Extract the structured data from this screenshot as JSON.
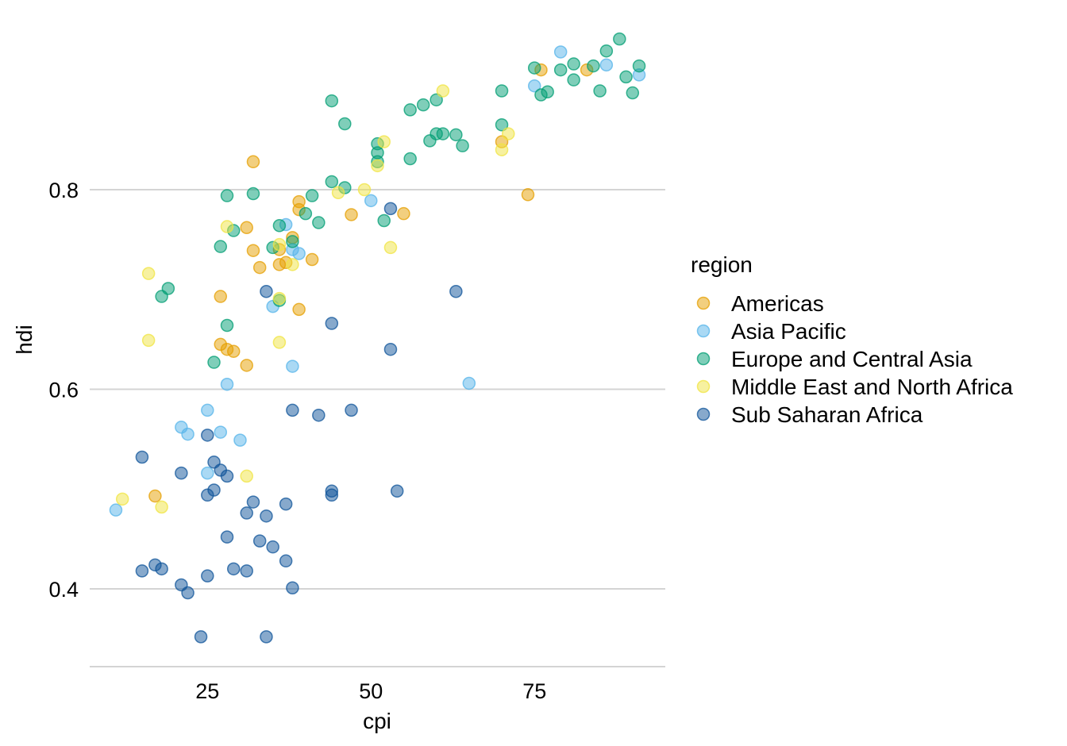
{
  "chart_data": {
    "type": "scatter",
    "title": "",
    "xlabel": "cpi",
    "ylabel": "hdi",
    "xlim": [
      7,
      95
    ],
    "ylim": [
      0.32,
      0.96
    ],
    "xticks": [
      25,
      50,
      75
    ],
    "yticks": [
      0.4,
      0.6,
      0.8
    ],
    "ytick_labels": [
      "0.4",
      "0.6",
      "0.8"
    ],
    "xtick_labels": [
      "25",
      "50",
      "75"
    ],
    "grid": "horizontal-major",
    "legend": {
      "title": "region",
      "position": "right"
    },
    "series": [
      {
        "name": "Americas",
        "color": "#E69F00",
        "points": [
          [
            32,
            0.828
          ],
          [
            31,
            0.762
          ],
          [
            32,
            0.739
          ],
          [
            33,
            0.722
          ],
          [
            27,
            0.693
          ],
          [
            27,
            0.645
          ],
          [
            28,
            0.64
          ],
          [
            29,
            0.638
          ],
          [
            31,
            0.624
          ],
          [
            36,
            0.725
          ],
          [
            37,
            0.727
          ],
          [
            36,
            0.74
          ],
          [
            38,
            0.752
          ],
          [
            39,
            0.788
          ],
          [
            39,
            0.78
          ],
          [
            41,
            0.73
          ],
          [
            39,
            0.68
          ],
          [
            47,
            0.775
          ],
          [
            55,
            0.776
          ],
          [
            17,
            0.493
          ],
          [
            70,
            0.848
          ],
          [
            74,
            0.795
          ],
          [
            76,
            0.92
          ],
          [
            83,
            0.92
          ]
        ]
      },
      {
        "name": "Asia Pacific",
        "color": "#56B4E9",
        "points": [
          [
            37,
            0.765
          ],
          [
            38,
            0.74
          ],
          [
            39,
            0.736
          ],
          [
            35,
            0.683
          ],
          [
            38,
            0.623
          ],
          [
            28,
            0.605
          ],
          [
            50,
            0.789
          ],
          [
            25,
            0.579
          ],
          [
            21,
            0.562
          ],
          [
            22,
            0.555
          ],
          [
            27,
            0.557
          ],
          [
            30,
            0.549
          ],
          [
            25,
            0.516
          ],
          [
            11,
            0.479
          ],
          [
            65,
            0.606
          ],
          [
            75,
            0.904
          ],
          [
            79,
            0.938
          ],
          [
            86,
            0.925
          ],
          [
            91,
            0.915
          ]
        ]
      },
      {
        "name": "Europe and Central Asia",
        "color": "#009E73",
        "points": [
          [
            44,
            0.889
          ],
          [
            46,
            0.866
          ],
          [
            51,
            0.846
          ],
          [
            51,
            0.837
          ],
          [
            51,
            0.828
          ],
          [
            56,
            0.88
          ],
          [
            58,
            0.885
          ],
          [
            60,
            0.89
          ],
          [
            56,
            0.831
          ],
          [
            59,
            0.849
          ],
          [
            60,
            0.856
          ],
          [
            61,
            0.856
          ],
          [
            63,
            0.855
          ],
          [
            64,
            0.844
          ],
          [
            70,
            0.899
          ],
          [
            70,
            0.865
          ],
          [
            75,
            0.922
          ],
          [
            76,
            0.895
          ],
          [
            77,
            0.898
          ],
          [
            79,
            0.92
          ],
          [
            81,
            0.91
          ],
          [
            81,
            0.926
          ],
          [
            84,
            0.924
          ],
          [
            85,
            0.899
          ],
          [
            86,
            0.939
          ],
          [
            88,
            0.951
          ],
          [
            89,
            0.913
          ],
          [
            90,
            0.897
          ],
          [
            91,
            0.924
          ],
          [
            28,
            0.794
          ],
          [
            32,
            0.796
          ],
          [
            27,
            0.743
          ],
          [
            29,
            0.759
          ],
          [
            36,
            0.764
          ],
          [
            35,
            0.742
          ],
          [
            38,
            0.748
          ],
          [
            40,
            0.776
          ],
          [
            41,
            0.794
          ],
          [
            42,
            0.767
          ],
          [
            44,
            0.808
          ],
          [
            46,
            0.802
          ],
          [
            52,
            0.769
          ],
          [
            36,
            0.689
          ],
          [
            28,
            0.664
          ],
          [
            26,
            0.627
          ],
          [
            18,
            0.693
          ],
          [
            19,
            0.701
          ]
        ]
      },
      {
        "name": "Middle East and North Africa",
        "color": "#F0E442",
        "points": [
          [
            61,
            0.899
          ],
          [
            51,
            0.824
          ],
          [
            52,
            0.848
          ],
          [
            49,
            0.8
          ],
          [
            45,
            0.797
          ],
          [
            53,
            0.742
          ],
          [
            71,
            0.856
          ],
          [
            70,
            0.84
          ],
          [
            28,
            0.763
          ],
          [
            36,
            0.745
          ],
          [
            38,
            0.725
          ],
          [
            36,
            0.691
          ],
          [
            16,
            0.716
          ],
          [
            16,
            0.649
          ],
          [
            36,
            0.647
          ],
          [
            31,
            0.513
          ],
          [
            18,
            0.482
          ],
          [
            12,
            0.49
          ]
        ]
      },
      {
        "name": "Sub Saharan Africa",
        "color": "#0F5499",
        "points": [
          [
            53,
            0.781
          ],
          [
            63,
            0.698
          ],
          [
            34,
            0.698
          ],
          [
            44,
            0.666
          ],
          [
            53,
            0.64
          ],
          [
            38,
            0.579
          ],
          [
            42,
            0.574
          ],
          [
            47,
            0.579
          ],
          [
            15,
            0.532
          ],
          [
            26,
            0.527
          ],
          [
            27,
            0.519
          ],
          [
            28,
            0.513
          ],
          [
            21,
            0.516
          ],
          [
            25,
            0.554
          ],
          [
            26,
            0.499
          ],
          [
            25,
            0.494
          ],
          [
            32,
            0.487
          ],
          [
            37,
            0.485
          ],
          [
            31,
            0.476
          ],
          [
            34,
            0.473
          ],
          [
            44,
            0.498
          ],
          [
            44,
            0.494
          ],
          [
            54,
            0.498
          ],
          [
            28,
            0.452
          ],
          [
            33,
            0.448
          ],
          [
            35,
            0.442
          ],
          [
            37,
            0.428
          ],
          [
            15,
            0.418
          ],
          [
            17,
            0.424
          ],
          [
            18,
            0.42
          ],
          [
            29,
            0.42
          ],
          [
            31,
            0.418
          ],
          [
            25,
            0.413
          ],
          [
            21,
            0.404
          ],
          [
            22,
            0.396
          ],
          [
            38,
            0.401
          ],
          [
            24,
            0.352
          ],
          [
            34,
            0.352
          ]
        ]
      }
    ]
  }
}
